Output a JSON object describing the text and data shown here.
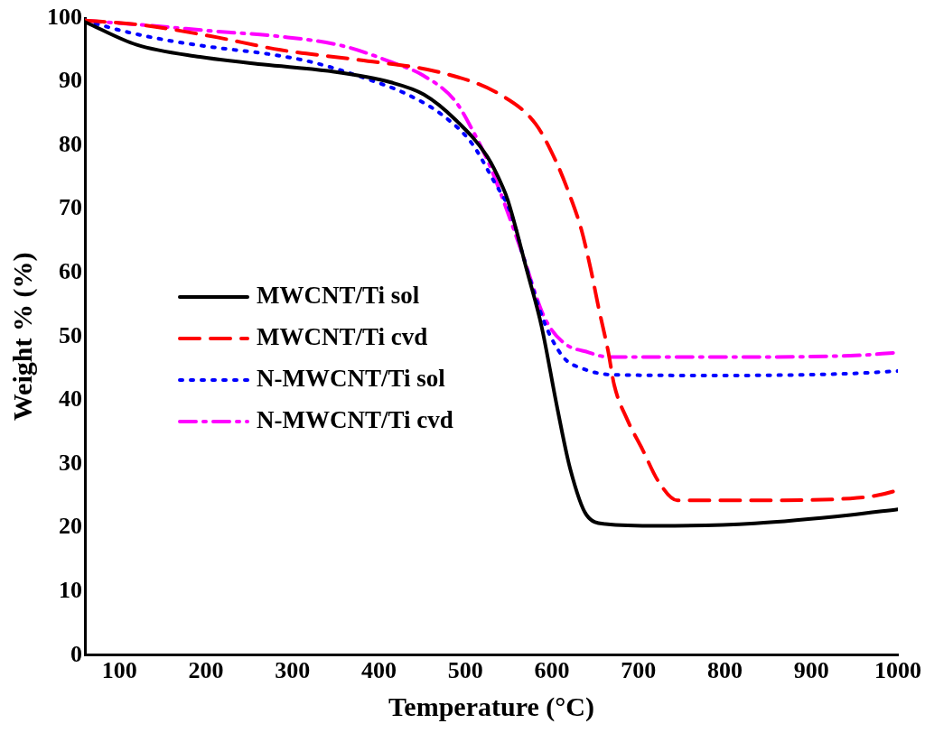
{
  "chart_data": {
    "type": "line",
    "xlabel": "Temperature (°C)",
    "ylabel": "Weight % (%)",
    "xlim": [
      60,
      1000
    ],
    "xticks": [
      100,
      200,
      300,
      400,
      500,
      600,
      700,
      800,
      900,
      1000
    ],
    "ylim": [
      0,
      100
    ],
    "yticks": [
      0,
      10,
      20,
      30,
      40,
      50,
      60,
      70,
      80,
      90,
      100
    ],
    "grid": false,
    "legend": "left",
    "marker": "none",
    "series": [
      {
        "name": "MWCNT/Ti sol",
        "color": "#000000",
        "line_style": "solid",
        "x": [
          60,
          120,
          193,
          267,
          341,
          414,
          452,
          488,
          525,
          543,
          549,
          572,
          588,
          606,
          621,
          640,
          662,
          724,
          835,
          945,
          1000
        ],
        "values": [
          99.4,
          95.8,
          93.9,
          92.7,
          91.7,
          89.9,
          88.0,
          84.1,
          78.3,
          73.5,
          71.4,
          59.9,
          51.6,
          38.9,
          29.3,
          22.0,
          20.6,
          20.3,
          20.7,
          22.0,
          22.9
        ]
      },
      {
        "name": "MWCNT/Ti cvd",
        "color": "#ff0000",
        "line_style": "dashed",
        "x": [
          60,
          120,
          204,
          286,
          378,
          470,
          540,
          581,
          604,
          620,
          634,
          645,
          654,
          665,
          672,
          687,
          705,
          723,
          745,
          834,
          945,
          997,
          1000
        ],
        "values": [
          99.6,
          99.0,
          97.2,
          95.0,
          93.4,
          91.5,
          88.0,
          83.4,
          77.7,
          72.4,
          66.8,
          60.5,
          54.5,
          47.7,
          42.4,
          37.0,
          32.2,
          27.3,
          24.3,
          24.3,
          24.6,
          25.8,
          26.0
        ]
      },
      {
        "name": "N-MWCNT/Ti sol",
        "color": "#0000ff",
        "line_style": "dotted",
        "x": [
          60,
          109,
          160,
          215,
          270,
          322,
          385,
          433,
          474,
          507,
          532,
          553,
          567,
          591,
          613,
          635,
          672,
          798,
          945,
          1000
        ],
        "values": [
          99.6,
          97.8,
          96.4,
          95.3,
          94.4,
          93.1,
          90.5,
          88.0,
          84.7,
          80.4,
          74.6,
          69.2,
          62.5,
          52.3,
          46.8,
          45.0,
          44.0,
          43.9,
          44.2,
          44.6
        ]
      },
      {
        "name": "N-MWCNT/Ti cvd",
        "color": "#ff00ff",
        "line_style": "dashdot",
        "x": [
          60,
          138,
          212,
          286,
          359,
          414,
          451,
          488,
          507,
          525,
          541,
          565,
          591,
          613,
          643,
          665,
          798,
          945,
          1000
        ],
        "values": [
          99.6,
          98.8,
          97.9,
          97.1,
          95.6,
          93.1,
          91.0,
          87.0,
          82.7,
          77.8,
          72.4,
          63.3,
          53.1,
          49.1,
          47.5,
          46.8,
          46.8,
          47.0,
          47.5
        ]
      }
    ]
  }
}
